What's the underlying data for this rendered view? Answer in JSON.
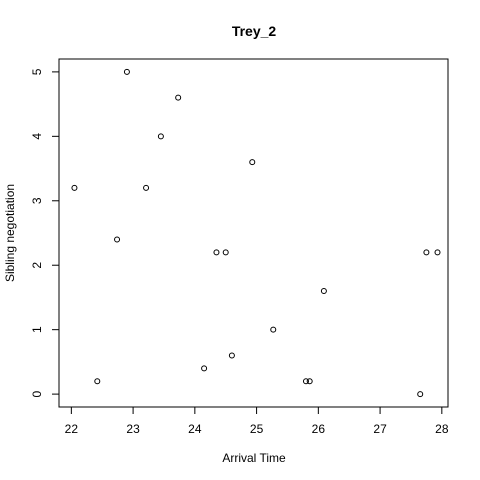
{
  "chart_data": {
    "type": "scatter",
    "title": "Trey_2",
    "xlabel": "Arrival Time",
    "ylabel": "Sibling negotiation",
    "xlim": [
      21.8,
      28.1
    ],
    "ylim": [
      -0.2,
      5.2
    ],
    "xticks": [
      22,
      23,
      24,
      25,
      26,
      27,
      28
    ],
    "yticks": [
      0,
      1,
      2,
      3,
      4,
      5
    ],
    "grid": false,
    "points": [
      {
        "x": 22.05,
        "y": 3.2
      },
      {
        "x": 22.42,
        "y": 0.2
      },
      {
        "x": 22.74,
        "y": 2.4
      },
      {
        "x": 22.9,
        "y": 5.0
      },
      {
        "x": 23.21,
        "y": 3.2
      },
      {
        "x": 23.45,
        "y": 4.0
      },
      {
        "x": 23.73,
        "y": 4.6
      },
      {
        "x": 24.15,
        "y": 0.4
      },
      {
        "x": 24.35,
        "y": 2.2
      },
      {
        "x": 24.5,
        "y": 2.2
      },
      {
        "x": 24.6,
        "y": 0.6
      },
      {
        "x": 24.93,
        "y": 3.6
      },
      {
        "x": 25.27,
        "y": 1.0
      },
      {
        "x": 25.8,
        "y": 0.2
      },
      {
        "x": 25.86,
        "y": 0.2
      },
      {
        "x": 26.09,
        "y": 1.6
      },
      {
        "x": 27.65,
        "y": 0.0
      },
      {
        "x": 27.75,
        "y": 2.2
      },
      {
        "x": 27.93,
        "y": 2.2
      }
    ]
  }
}
